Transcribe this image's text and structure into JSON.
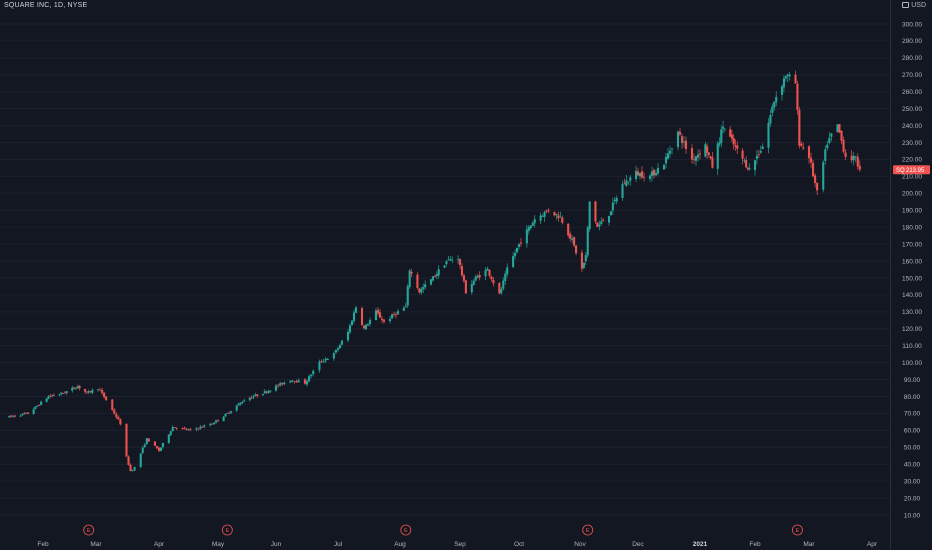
{
  "header": {
    "title": "SQUARE INC, 1D, NYSE",
    "currency": "USD"
  },
  "colors": {
    "background": "#131722",
    "up": "#26a69a",
    "down": "#ef5350",
    "text": "#b2b5be"
  },
  "last_price": {
    "ticker": "SQ",
    "value": "213.95"
  },
  "chart_data": {
    "type": "candlestick",
    "title": "SQUARE INC, 1D, NYSE",
    "y_unit": "USD",
    "ylim": [
      10,
      300
    ],
    "y_ticks": [
      "10.00",
      "20.00",
      "30.00",
      "40.00",
      "50.00",
      "60.00",
      "70.00",
      "80.00",
      "90.00",
      "100.00",
      "110.00",
      "120.00",
      "130.00",
      "140.00",
      "150.00",
      "160.00",
      "170.00",
      "180.00",
      "190.00",
      "200.00",
      "210.00",
      "220.00",
      "230.00",
      "240.00",
      "250.00",
      "260.00",
      "270.00",
      "280.00",
      "290.00",
      "300.00"
    ],
    "x_ticks": [
      {
        "label": "Feb",
        "year": false
      },
      {
        "label": "Mar",
        "year": false
      },
      {
        "label": "Apr",
        "year": false
      },
      {
        "label": "May",
        "year": false
      },
      {
        "label": "Jun",
        "year": false
      },
      {
        "label": "Jul",
        "year": false
      },
      {
        "label": "Aug",
        "year": false
      },
      {
        "label": "Sep",
        "year": false
      },
      {
        "label": "Oct",
        "year": false
      },
      {
        "label": "Nov",
        "year": false
      },
      {
        "label": "Dec",
        "year": false
      },
      {
        "label": "2021",
        "year": true
      },
      {
        "label": "Feb",
        "year": false
      },
      {
        "label": "Mar",
        "year": false
      },
      {
        "label": "Apr",
        "year": false
      }
    ],
    "earnings_markers": {
      "label": "E",
      "dates": [
        "2020-02-26",
        "2020-05-06",
        "2020-08-04",
        "2020-11-05",
        "2021-02-23"
      ]
    },
    "price_path": [
      [
        "2020-01-14",
        68
      ],
      [
        "2020-01-24",
        70
      ],
      [
        "2020-02-04",
        80
      ],
      [
        "2020-02-12",
        82
      ],
      [
        "2020-02-20",
        86
      ],
      [
        "2020-02-25",
        82
      ],
      [
        "2020-03-02",
        85
      ],
      [
        "2020-03-06",
        78
      ],
      [
        "2020-03-10",
        70
      ],
      [
        "2020-03-13",
        64
      ],
      [
        "2020-03-16",
        44
      ],
      [
        "2020-03-18",
        36
      ],
      [
        "2020-03-20",
        38
      ],
      [
        "2020-03-26",
        55
      ],
      [
        "2020-04-01",
        48
      ],
      [
        "2020-04-08",
        62
      ],
      [
        "2020-04-17",
        60
      ],
      [
        "2020-04-28",
        64
      ],
      [
        "2020-05-06",
        70
      ],
      [
        "2020-05-15",
        78
      ],
      [
        "2020-05-27",
        83
      ],
      [
        "2020-06-08",
        90
      ],
      [
        "2020-06-15",
        88
      ],
      [
        "2020-06-22",
        100
      ],
      [
        "2020-06-29",
        105
      ],
      [
        "2020-07-06",
        118
      ],
      [
        "2020-07-10",
        133
      ],
      [
        "2020-07-14",
        120
      ],
      [
        "2020-07-20",
        130
      ],
      [
        "2020-07-24",
        124
      ],
      [
        "2020-07-31",
        130
      ],
      [
        "2020-08-04",
        133
      ],
      [
        "2020-08-06",
        155
      ],
      [
        "2020-08-11",
        142
      ],
      [
        "2020-08-18",
        150
      ],
      [
        "2020-08-25",
        160
      ],
      [
        "2020-08-31",
        162
      ],
      [
        "2020-09-04",
        142
      ],
      [
        "2020-09-09",
        150
      ],
      [
        "2020-09-15",
        155
      ],
      [
        "2020-09-21",
        140
      ],
      [
        "2020-09-25",
        155
      ],
      [
        "2020-10-01",
        170
      ],
      [
        "2020-10-09",
        185
      ],
      [
        "2020-10-16",
        190
      ],
      [
        "2020-10-22",
        186
      ],
      [
        "2020-10-28",
        172
      ],
      [
        "2020-11-02",
        155
      ],
      [
        "2020-11-04",
        163
      ],
      [
        "2020-11-06",
        195
      ],
      [
        "2020-11-10",
        180
      ],
      [
        "2020-11-16",
        188
      ],
      [
        "2020-11-23",
        205
      ],
      [
        "2020-11-30",
        212
      ],
      [
        "2020-12-07",
        210
      ],
      [
        "2020-12-14",
        218
      ],
      [
        "2020-12-21",
        236
      ],
      [
        "2020-12-28",
        220
      ],
      [
        "2021-01-04",
        228
      ],
      [
        "2021-01-08",
        216
      ],
      [
        "2021-01-14",
        240
      ],
      [
        "2021-01-22",
        225
      ],
      [
        "2021-01-29",
        214
      ],
      [
        "2021-02-05",
        228
      ],
      [
        "2021-02-11",
        255
      ],
      [
        "2021-02-17",
        270
      ],
      [
        "2021-02-22",
        265
      ],
      [
        "2021-02-24",
        230
      ],
      [
        "2021-03-01",
        222
      ],
      [
        "2021-03-05",
        200
      ],
      [
        "2021-03-10",
        230
      ],
      [
        "2021-03-15",
        240
      ],
      [
        "2021-03-19",
        222
      ],
      [
        "2021-03-24",
        220
      ],
      [
        "2021-03-26",
        213.95
      ]
    ]
  }
}
